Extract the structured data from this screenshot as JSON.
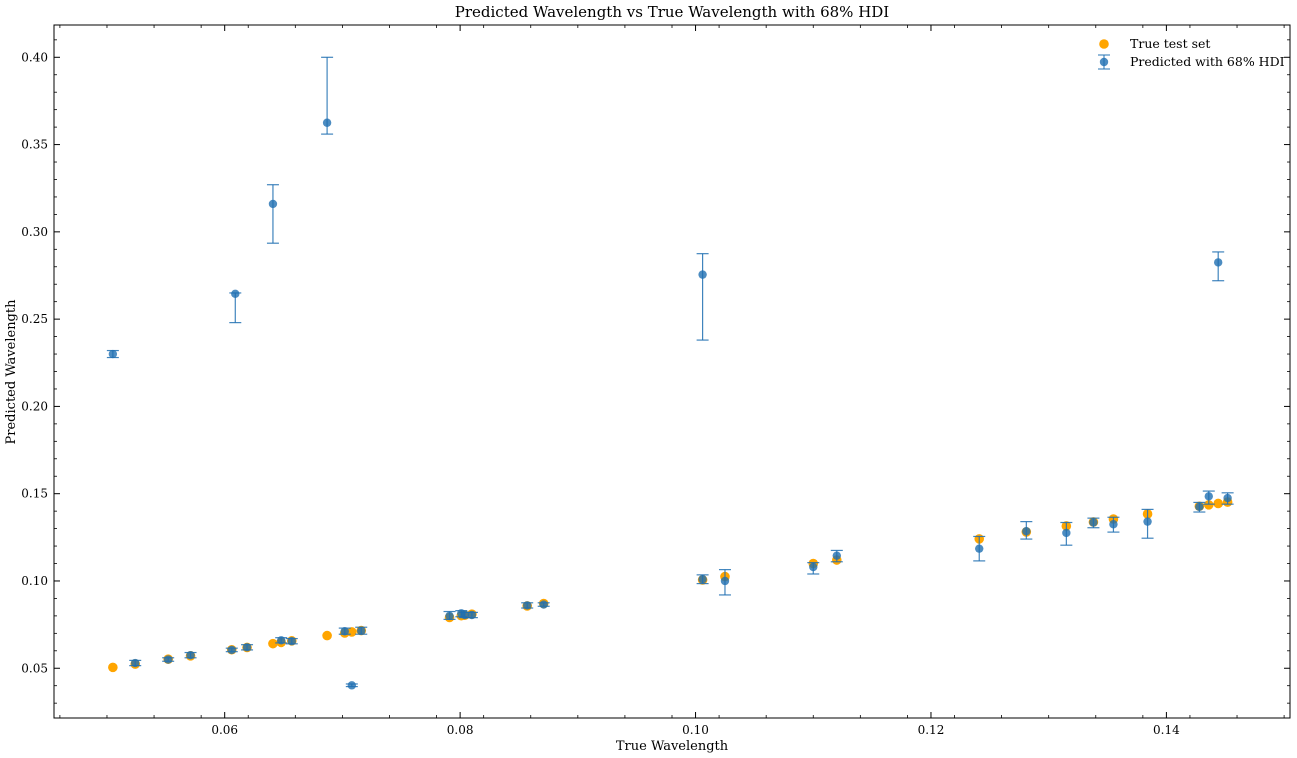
{
  "chart_data": {
    "type": "scatter",
    "title": "Predicted Wavelength vs True Wavelength with 68% HDI",
    "xlabel": "True Wavelength",
    "ylabel": "Predicted Wavelength",
    "xlim": [
      0.0455,
      0.1505
    ],
    "ylim": [
      0.0215,
      0.4185
    ],
    "xticks": [
      "0.06",
      "0.08",
      "0.10",
      "0.12",
      "0.14"
    ],
    "yticks": [
      "0.05",
      "0.10",
      "0.15",
      "0.20",
      "0.25",
      "0.30",
      "0.35",
      "0.40"
    ],
    "legend_position": "top-right",
    "colors": {
      "true": "#ffa500",
      "predicted": "#1f6fb2"
    },
    "series": [
      {
        "name": "True test set",
        "points": [
          [
            0.0505,
            0.0505
          ],
          [
            0.0524,
            0.0524
          ],
          [
            0.0552,
            0.0552
          ],
          [
            0.0571,
            0.0571
          ],
          [
            0.0606,
            0.0606
          ],
          [
            0.0619,
            0.0619
          ],
          [
            0.0641,
            0.0641
          ],
          [
            0.0648,
            0.0648
          ],
          [
            0.0657,
            0.0657
          ],
          [
            0.0687,
            0.0687
          ],
          [
            0.0702,
            0.0702
          ],
          [
            0.0708,
            0.0708
          ],
          [
            0.0716,
            0.0716
          ],
          [
            0.0791,
            0.0791
          ],
          [
            0.0801,
            0.0801
          ],
          [
            0.0804,
            0.0804
          ],
          [
            0.081,
            0.081
          ],
          [
            0.0857,
            0.0857
          ],
          [
            0.0871,
            0.0871
          ],
          [
            0.1006,
            0.1006
          ],
          [
            0.1025,
            0.1025
          ],
          [
            0.11,
            0.11
          ],
          [
            0.112,
            0.112
          ],
          [
            0.1241,
            0.1241
          ],
          [
            0.1281,
            0.1281
          ],
          [
            0.1315,
            0.1315
          ],
          [
            0.1338,
            0.1338
          ],
          [
            0.1355,
            0.1355
          ],
          [
            0.1384,
            0.1384
          ],
          [
            0.1428,
            0.1428
          ],
          [
            0.1436,
            0.1436
          ],
          [
            0.1444,
            0.1444
          ],
          [
            0.1452,
            0.1452
          ]
        ]
      },
      {
        "name": "Predicted with 68% HDI",
        "points": [
          {
            "x": 0.0505,
            "y": 0.23,
            "lo": 0.228,
            "hi": 0.232
          },
          {
            "x": 0.0524,
            "y": 0.053,
            "lo": 0.0515,
            "hi": 0.0545
          },
          {
            "x": 0.0552,
            "y": 0.055,
            "lo": 0.054,
            "hi": 0.056
          },
          {
            "x": 0.0571,
            "y": 0.0575,
            "lo": 0.056,
            "hi": 0.059
          },
          {
            "x": 0.0606,
            "y": 0.0605,
            "lo": 0.0595,
            "hi": 0.0615
          },
          {
            "x": 0.0609,
            "y": 0.2645,
            "lo": 0.248,
            "hi": 0.265
          },
          {
            "x": 0.0619,
            "y": 0.062,
            "lo": 0.0605,
            "hi": 0.0635
          },
          {
            "x": 0.0641,
            "y": 0.316,
            "lo": 0.2935,
            "hi": 0.327
          },
          {
            "x": 0.0648,
            "y": 0.066,
            "lo": 0.0645,
            "hi": 0.0675
          },
          {
            "x": 0.0657,
            "y": 0.0655,
            "lo": 0.064,
            "hi": 0.067
          },
          {
            "x": 0.0687,
            "y": 0.3625,
            "lo": 0.356,
            "hi": 0.4
          },
          {
            "x": 0.0702,
            "y": 0.0712,
            "lo": 0.0695,
            "hi": 0.073
          },
          {
            "x": 0.0708,
            "y": 0.0402,
            "lo": 0.0395,
            "hi": 0.041
          },
          {
            "x": 0.0716,
            "y": 0.0715,
            "lo": 0.0695,
            "hi": 0.0735
          },
          {
            "x": 0.0791,
            "y": 0.08,
            "lo": 0.078,
            "hi": 0.0825
          },
          {
            "x": 0.0801,
            "y": 0.0815,
            "lo": 0.0795,
            "hi": 0.083
          },
          {
            "x": 0.0804,
            "y": 0.0805,
            "lo": 0.079,
            "hi": 0.082
          },
          {
            "x": 0.081,
            "y": 0.0805,
            "lo": 0.079,
            "hi": 0.082
          },
          {
            "x": 0.0857,
            "y": 0.086,
            "lo": 0.0845,
            "hi": 0.0875
          },
          {
            "x": 0.0871,
            "y": 0.0865,
            "lo": 0.0855,
            "hi": 0.0875
          },
          {
            "x": 0.1006,
            "y": 0.101,
            "lo": 0.0985,
            "hi": 0.1035
          },
          {
            "x": 0.1006,
            "y": 0.2755,
            "lo": 0.238,
            "hi": 0.2875
          },
          {
            "x": 0.1025,
            "y": 0.1,
            "lo": 0.092,
            "hi": 0.1065
          },
          {
            "x": 0.11,
            "y": 0.108,
            "lo": 0.104,
            "hi": 0.1105
          },
          {
            "x": 0.112,
            "y": 0.1145,
            "lo": 0.111,
            "hi": 0.1175
          },
          {
            "x": 0.1241,
            "y": 0.1185,
            "lo": 0.1115,
            "hi": 0.1255
          },
          {
            "x": 0.1281,
            "y": 0.1285,
            "lo": 0.124,
            "hi": 0.134
          },
          {
            "x": 0.1315,
            "y": 0.1275,
            "lo": 0.1205,
            "hi": 0.1335
          },
          {
            "x": 0.1338,
            "y": 0.1335,
            "lo": 0.1305,
            "hi": 0.136
          },
          {
            "x": 0.1355,
            "y": 0.1325,
            "lo": 0.128,
            "hi": 0.1365
          },
          {
            "x": 0.1384,
            "y": 0.134,
            "lo": 0.1245,
            "hi": 0.141
          },
          {
            "x": 0.1428,
            "y": 0.1425,
            "lo": 0.1395,
            "hi": 0.145
          },
          {
            "x": 0.1436,
            "y": 0.1485,
            "lo": 0.144,
            "hi": 0.1515
          },
          {
            "x": 0.1444,
            "y": 0.2825,
            "lo": 0.272,
            "hi": 0.2885
          },
          {
            "x": 0.1452,
            "y": 0.1475,
            "lo": 0.144,
            "hi": 0.1505
          }
        ]
      }
    ]
  }
}
